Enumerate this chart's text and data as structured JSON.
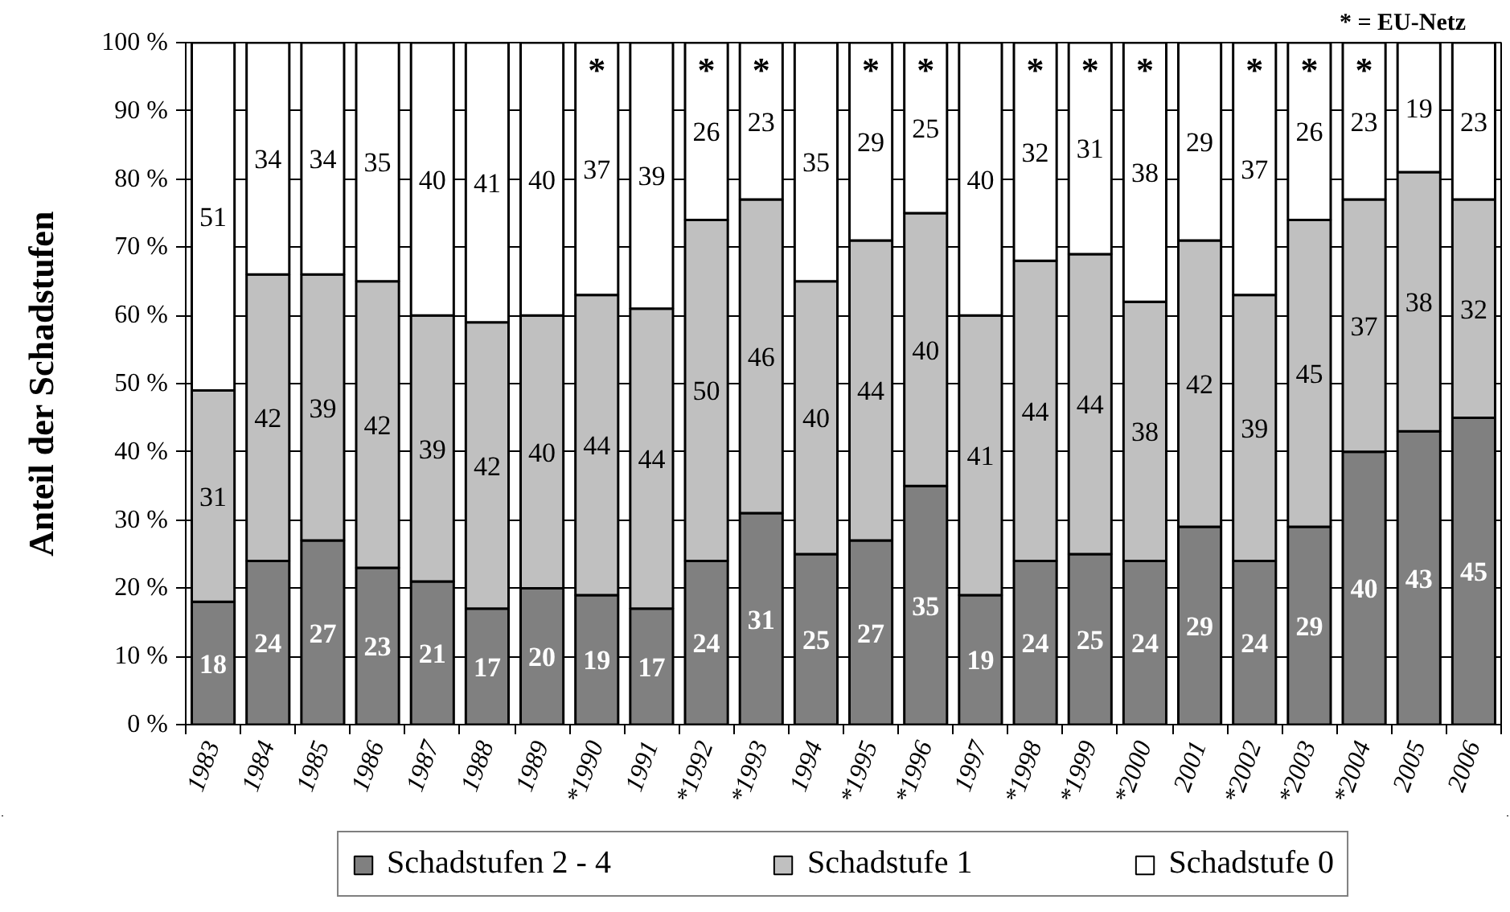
{
  "chart_data": {
    "type": "bar",
    "stacked": true,
    "ylabel": "Anteil der Schadstufen",
    "categories": [
      "1983",
      "1984",
      "1985",
      "1986",
      "1987",
      "1988",
      "1989",
      "*1990",
      "1991",
      "*1992",
      "*1993",
      "1994",
      "*1995",
      "*1996",
      "1997",
      "*1998",
      "*1999",
      "*2000",
      "2001",
      "*2002",
      "*2003",
      "*2004",
      "2005",
      "2006"
    ],
    "series": [
      {
        "name": "Schadstufen 2 - 4",
        "color": "#808080",
        "values": [
          18,
          24,
          27,
          23,
          21,
          17,
          20,
          19,
          17,
          24,
          31,
          25,
          27,
          35,
          19,
          24,
          25,
          24,
          29,
          24,
          29,
          40,
          43,
          45
        ]
      },
      {
        "name": "Schadstufe 1",
        "color": "#c0c0c0",
        "values": [
          31,
          42,
          39,
          42,
          39,
          42,
          40,
          44,
          44,
          50,
          46,
          40,
          44,
          40,
          41,
          44,
          44,
          38,
          42,
          39,
          45,
          37,
          38,
          32
        ]
      },
      {
        "name": "Schadstufe 0",
        "color": "#ffffff",
        "values": [
          51,
          34,
          34,
          35,
          40,
          41,
          40,
          37,
          39,
          26,
          23,
          35,
          29,
          25,
          40,
          32,
          31,
          38,
          29,
          37,
          26,
          23,
          19,
          23
        ]
      }
    ],
    "ylim": [
      0,
      100
    ],
    "yticks": [
      {
        "value": 0,
        "label": "0 %"
      },
      {
        "value": 10,
        "label": "10 %"
      },
      {
        "value": 20,
        "label": "20 %"
      },
      {
        "value": 30,
        "label": "30 %"
      },
      {
        "value": 40,
        "label": "40 %"
      },
      {
        "value": 50,
        "label": "50 %"
      },
      {
        "value": 60,
        "label": "60 %"
      },
      {
        "value": 70,
        "label": "70 %"
      },
      {
        "value": 80,
        "label": "80 %"
      },
      {
        "value": 90,
        "label": "90 %"
      },
      {
        "value": 100,
        "label": "100 %"
      }
    ],
    "data_labels": true,
    "grid": "y",
    "legend": "bottom",
    "annotations": [
      "* = EU-Netz",
      {
        "text": "*",
        "x": "*1990",
        "y": 96
      },
      {
        "text": "*",
        "x": "*1992",
        "y": 96
      },
      {
        "text": "*",
        "x": "*1993",
        "y": 96
      },
      {
        "text": "*",
        "x": "*1995",
        "y": 96
      },
      {
        "text": "*",
        "x": "*1996",
        "y": 96
      },
      {
        "text": "*",
        "x": "*1998",
        "y": 96
      },
      {
        "text": "*",
        "x": "*1999",
        "y": 96
      },
      {
        "text": "*",
        "x": "*2000",
        "y": 96
      },
      {
        "text": "*",
        "x": "*2002",
        "y": 96
      },
      {
        "text": "*",
        "x": "*2003",
        "y": 96
      },
      {
        "text": "*",
        "x": "*2004",
        "y": 96
      }
    ]
  }
}
